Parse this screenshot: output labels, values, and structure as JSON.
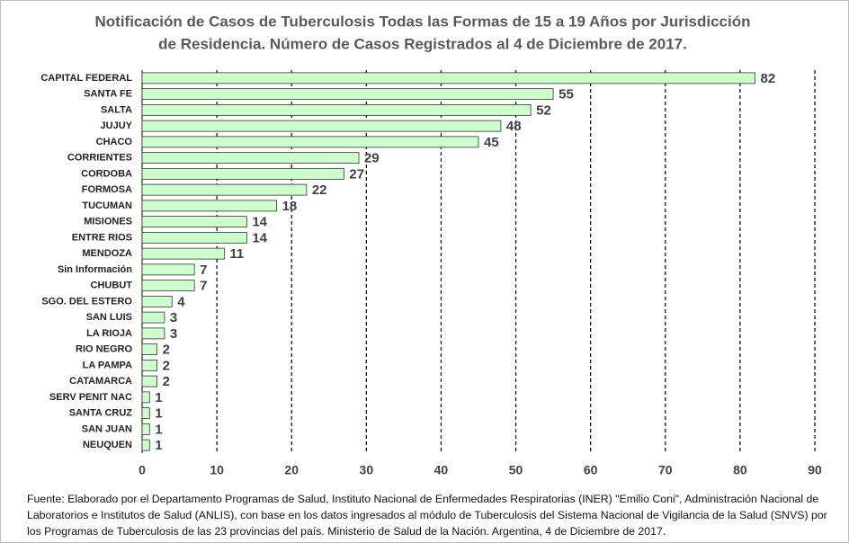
{
  "chart_data": {
    "type": "barh",
    "title": [
      "Notificación de Casos de Tuberculosis Todas las Formas de 15 a 19 Años por Jurisdicción",
      "de Residencia. Número de Casos Registrados al 4 de Diciembre de 2017."
    ],
    "categories": [
      "CAPITAL FEDERAL",
      "SANTA FE",
      "SALTA",
      "JUJUY",
      "CHACO",
      "CORRIENTES",
      "CORDOBA",
      "FORMOSA",
      "TUCUMAN",
      "MISIONES",
      "ENTRE RIOS",
      "MENDOZA",
      "Sin Información",
      "CHUBUT",
      "SGO. DEL ESTERO",
      "SAN LUIS",
      "LA RIOJA",
      "RIO NEGRO",
      "LA PAMPA",
      "CATAMARCA",
      "SERV PENIT NAC",
      "SANTA CRUZ",
      "SAN JUAN",
      "NEUQUEN"
    ],
    "values": [
      82,
      55,
      52,
      48,
      45,
      29,
      27,
      22,
      18,
      14,
      14,
      11,
      7,
      7,
      4,
      3,
      3,
      2,
      2,
      2,
      1,
      1,
      1,
      1
    ],
    "color": "#ccffcc",
    "xlim": [
      0,
      90
    ],
    "xticks": [
      0,
      10,
      20,
      30,
      40,
      50,
      60,
      70,
      80,
      90
    ],
    "grid": true,
    "note": "Fuente: Elaborado por el Departamento Programas de Salud, Instituto Nacional de Enfermedades Respiratorias (INER) \"Emilio Coni\", Administración Nacional de Laboratorios e Institutos de Salud (ANLIS), con base en los datos ingresados al módulo de Tuberculosis del Sistema Nacional de Vigilancia de la Salud (SNVS) por los Programas de Tuberculosis de las 23 provincias del país. Ministerio de Salud de la Nación. Argentina, 4 de Diciembre de 2017."
  }
}
